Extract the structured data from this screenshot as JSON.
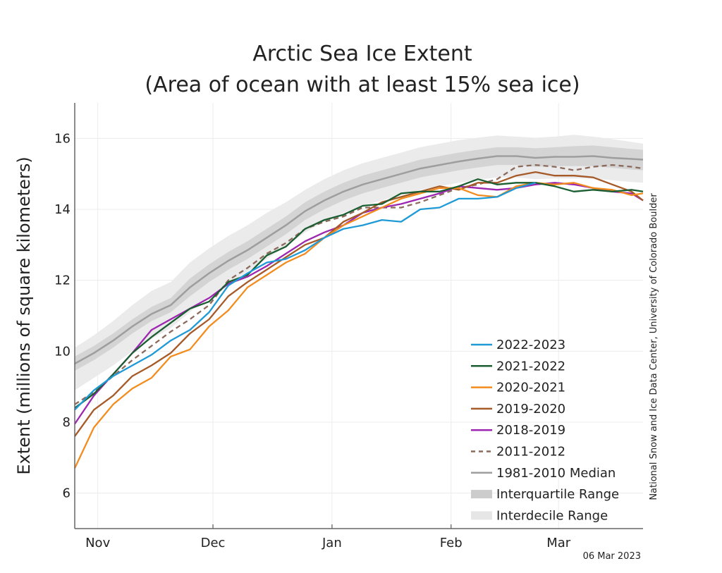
{
  "chart_data": {
    "type": "line",
    "title": "Arctic Sea Ice Extent",
    "subtitle": "(Area of ocean with at least 15% sea ice)",
    "ylabel": "Extent (millions of square kilometers)",
    "xlabel": "",
    "ylim": [
      5,
      17
    ],
    "xlim": [
      "Oct 26",
      "Mar 15"
    ],
    "yticks": [
      6,
      8,
      10,
      12,
      14,
      16
    ],
    "month_ticks": [
      {
        "label": "Nov",
        "day": 6
      },
      {
        "label": "Dec",
        "day": 36
      },
      {
        "label": "Jan",
        "day": 67
      },
      {
        "label": "Feb",
        "day": 98
      },
      {
        "label": "Mar",
        "day": 126
      }
    ],
    "month_boundaries": [
      36,
      67,
      98
    ],
    "grid": true,
    "legend_position": "bottom-right",
    "credit": "National Snow and Ice Data Center, University of Colorado Boulder",
    "date_stamp": "06 Mar 2023",
    "x_note": "x values are day numbers counted from the left edge of the plot",
    "x": [
      0,
      5,
      10,
      15,
      20,
      25,
      30,
      35,
      40,
      45,
      50,
      55,
      60,
      65,
      70,
      75,
      80,
      85,
      90,
      95,
      100,
      105,
      110,
      115,
      120,
      125,
      130,
      135,
      140,
      145,
      148
    ],
    "median": [
      9.65,
      9.95,
      10.3,
      10.7,
      11.05,
      11.3,
      11.8,
      12.2,
      12.55,
      12.85,
      13.2,
      13.55,
      13.95,
      14.25,
      14.5,
      14.7,
      14.85,
      15.0,
      15.15,
      15.25,
      15.35,
      15.43,
      15.5,
      15.5,
      15.45,
      15.48,
      15.48,
      15.5,
      15.45,
      15.42,
      15.4
    ],
    "interquartile_range": {
      "lower": [
        9.45,
        9.75,
        10.1,
        10.5,
        10.85,
        11.1,
        11.55,
        11.95,
        12.3,
        12.6,
        12.95,
        13.3,
        13.7,
        14.0,
        14.25,
        14.45,
        14.6,
        14.75,
        14.9,
        15.0,
        15.1,
        15.18,
        15.25,
        15.25,
        15.2,
        15.22,
        15.22,
        15.22,
        15.17,
        15.12,
        15.1
      ],
      "upper": [
        9.85,
        10.15,
        10.5,
        10.9,
        11.25,
        11.5,
        12.05,
        12.45,
        12.8,
        13.1,
        13.45,
        13.8,
        14.2,
        14.5,
        14.75,
        14.95,
        15.1,
        15.25,
        15.4,
        15.5,
        15.6,
        15.68,
        15.75,
        15.75,
        15.72,
        15.75,
        15.78,
        15.8,
        15.75,
        15.7,
        15.68
      ]
    },
    "interdecile_range": {
      "lower": [
        8.9,
        9.25,
        9.6,
        10.0,
        10.35,
        10.65,
        11.1,
        11.55,
        11.9,
        12.25,
        12.6,
        12.95,
        13.35,
        13.65,
        13.9,
        14.1,
        14.25,
        14.4,
        14.55,
        14.65,
        14.75,
        14.83,
        14.9,
        14.9,
        14.85,
        14.87,
        14.87,
        14.87,
        14.82,
        14.77,
        14.75
      ],
      "upper": [
        10.1,
        10.45,
        10.85,
        11.3,
        11.7,
        11.95,
        12.5,
        12.9,
        13.25,
        13.55,
        13.9,
        14.2,
        14.55,
        14.85,
        15.1,
        15.3,
        15.45,
        15.6,
        15.75,
        15.85,
        15.95,
        16.02,
        16.08,
        16.05,
        16.02,
        16.05,
        16.1,
        16.05,
        15.98,
        15.9,
        15.85
      ]
    },
    "series": [
      {
        "name": "2022-2023",
        "color": "#1f9ad6",
        "dashed": false,
        "values": [
          8.35,
          8.9,
          9.3,
          9.6,
          9.9,
          10.3,
          10.6,
          11.1,
          11.85,
          12.2,
          12.5,
          12.6,
          12.85,
          13.2,
          13.45,
          13.55,
          13.7,
          13.65,
          14.0,
          14.05,
          14.3,
          14.3,
          14.35,
          14.6,
          14.75,
          null,
          null,
          null,
          null,
          null,
          null
        ]
      },
      {
        "name": "2021-2022",
        "color": "#1b5e32",
        "dashed": false,
        "values": [
          8.4,
          8.8,
          9.35,
          9.95,
          10.4,
          10.8,
          11.2,
          11.4,
          11.95,
          12.15,
          12.7,
          12.95,
          13.45,
          13.7,
          13.85,
          14.1,
          14.15,
          14.45,
          14.5,
          14.5,
          14.65,
          14.85,
          14.7,
          14.75,
          14.75,
          14.65,
          14.5,
          14.55,
          14.5,
          14.55,
          14.5
        ]
      },
      {
        "name": "2020-2021",
        "color": "#f28c1e",
        "dashed": false,
        "values": [
          6.7,
          7.85,
          8.5,
          8.95,
          9.25,
          9.85,
          10.05,
          10.7,
          11.15,
          11.8,
          12.15,
          12.5,
          12.75,
          13.2,
          13.55,
          13.8,
          14.05,
          14.3,
          14.45,
          14.6,
          14.6,
          14.4,
          14.35,
          14.65,
          14.75,
          14.7,
          14.75,
          14.6,
          14.55,
          14.4,
          14.45
        ]
      },
      {
        "name": "2019-2020",
        "color": "#a55a28",
        "dashed": false,
        "values": [
          7.6,
          8.35,
          8.75,
          9.3,
          9.6,
          9.95,
          10.5,
          10.9,
          11.55,
          11.95,
          12.3,
          12.65,
          13.0,
          13.2,
          13.65,
          13.9,
          14.2,
          14.35,
          14.5,
          14.65,
          14.55,
          14.75,
          14.75,
          14.95,
          15.05,
          14.95,
          14.95,
          14.9,
          14.7,
          14.5,
          14.25
        ]
      },
      {
        "name": "2018-2019",
        "color": "#9d27b0",
        "dashed": false,
        "values": [
          7.95,
          8.75,
          9.35,
          9.95,
          10.6,
          10.9,
          11.2,
          11.5,
          11.9,
          12.1,
          12.4,
          12.75,
          13.1,
          13.35,
          13.55,
          13.9,
          14.05,
          14.15,
          14.3,
          14.45,
          14.65,
          14.6,
          14.55,
          14.6,
          14.7,
          14.75,
          14.7,
          14.6,
          14.5,
          14.45,
          14.25
        ]
      },
      {
        "name": "2011-2012",
        "color": "#8b6a5c",
        "dashed": true,
        "values": [
          8.5,
          8.85,
          9.3,
          9.75,
          10.15,
          10.55,
          10.9,
          11.3,
          12.0,
          12.35,
          12.75,
          13.05,
          13.45,
          13.65,
          13.8,
          14.05,
          14.05,
          14.05,
          14.2,
          14.4,
          14.6,
          14.7,
          14.85,
          15.2,
          15.25,
          15.2,
          15.1,
          15.2,
          15.25,
          15.2,
          15.15
        ]
      }
    ]
  },
  "legend": {
    "items": [
      {
        "label": "2022-2023",
        "kind": "line",
        "color": "#1f9ad6"
      },
      {
        "label": "2021-2022",
        "kind": "line",
        "color": "#1b5e32"
      },
      {
        "label": "2020-2021",
        "kind": "line",
        "color": "#f28c1e"
      },
      {
        "label": "2019-2020",
        "kind": "line",
        "color": "#a55a28"
      },
      {
        "label": "2018-2019",
        "kind": "line",
        "color": "#9d27b0"
      },
      {
        "label": "2011-2012",
        "kind": "dashed",
        "color": "#8b6a5c"
      },
      {
        "label": "1981-2010 Median",
        "kind": "line",
        "color": "#9e9e9e"
      },
      {
        "label": "Interquartile Range",
        "kind": "band",
        "color": "#cccccc"
      },
      {
        "label": "Interdecile Range",
        "kind": "band",
        "color": "#e6e6e6"
      }
    ]
  }
}
